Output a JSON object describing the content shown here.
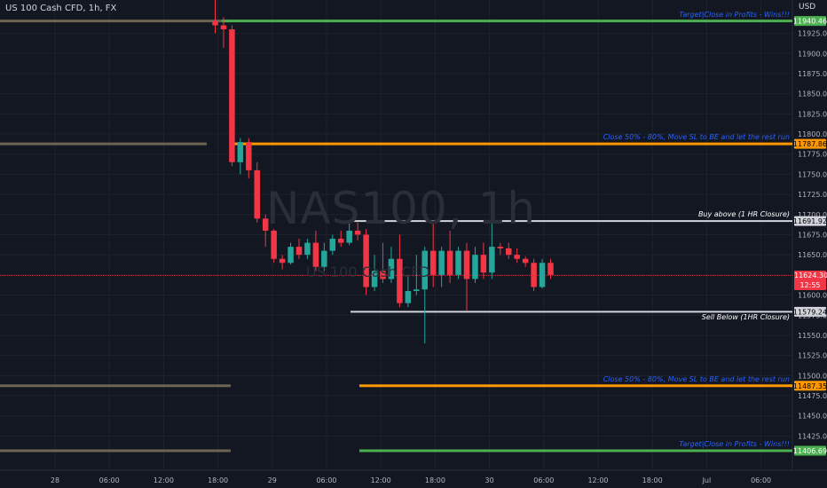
{
  "symbol_title": "US 100 Cash CFD, 1h, FX",
  "currency": "USD",
  "watermark": "NAS100, 1h",
  "watermark_sub": "US 100 Cash CFD",
  "colors": {
    "bg": "#131722",
    "up": "#26a69a",
    "down": "#f23645",
    "grid": "#1e222d",
    "axis_text": "#b2b5be"
  },
  "levels": [
    {
      "price": 11940.46,
      "label": "Target|Close in Profits - Wins!!!",
      "color": "#4caf50",
      "label_color": "#2962ff",
      "badge_text_color": "#ffffff"
    },
    {
      "price": 11787.86,
      "label": "Close 50% - 80%, Move SL to BE and let the rest run",
      "color": "#ff9800",
      "label_color": "#2962ff",
      "badge_text_color": "#000000"
    },
    {
      "price": 11691.92,
      "label": "Buy above (1 HR Closure)",
      "color": "#d1d4dc",
      "label_color": "#ffffff",
      "badge_text_color": "#000000"
    },
    {
      "price": 11579.24,
      "label": "Sell Below (1HR Closure)",
      "color": "#d1d4dc",
      "label_color": "#ffffff",
      "badge_text_color": "#000000"
    },
    {
      "price": 11487.35,
      "label": "Close 50% - 80%, Move SL to BE and let the rest run",
      "color": "#ff9800",
      "label_color": "#2962ff",
      "badge_text_color": "#000000"
    },
    {
      "price": 11406.69,
      "label": "Target|Close in Profits - Wins!!!",
      "color": "#4caf50",
      "label_color": "#2962ff",
      "badge_text_color": "#ffffff"
    }
  ],
  "current_price": {
    "price": 11624.3,
    "label": "11624.30",
    "countdown": "12:55"
  },
  "chart_data": {
    "type": "candlestick",
    "title": "US 100 Cash CFD, 1h, FX",
    "ylim": [
      11400,
      11960
    ],
    "y_ticks": [
      "11925.00",
      "11900.00",
      "11875.00",
      "11850.00",
      "11825.00",
      "11800.00",
      "11775.00",
      "11750.00",
      "11725.00",
      "11700.00",
      "11675.00",
      "11650.00",
      "11625.00",
      "11600.00",
      "11575.00",
      "11550.00",
      "11525.00",
      "11500.00",
      "11475.00",
      "11450.00",
      "11425.00"
    ],
    "x_ticks": [
      "28",
      "06:00",
      "12:00",
      "18:00",
      "29",
      "06:00",
      "12:00",
      "18:00",
      "30",
      "06:00",
      "12:00",
      "18:00",
      "Jul",
      "06:00"
    ],
    "candles": [
      {
        "o": 11940,
        "h": 12000,
        "l": 11925,
        "c": 11935
      },
      {
        "o": 11935,
        "h": 11945,
        "l": 11907,
        "c": 11930
      },
      {
        "o": 11930,
        "h": 11935,
        "l": 11760,
        "c": 11765
      },
      {
        "o": 11765,
        "h": 11795,
        "l": 11750,
        "c": 11790
      },
      {
        "o": 11790,
        "h": 11795,
        "l": 11745,
        "c": 11755
      },
      {
        "o": 11755,
        "h": 11765,
        "l": 11690,
        "c": 11695
      },
      {
        "o": 11695,
        "h": 11700,
        "l": 11660,
        "c": 11680
      },
      {
        "o": 11680,
        "h": 11682,
        "l": 11640,
        "c": 11645
      },
      {
        "o": 11645,
        "h": 11650,
        "l": 11632,
        "c": 11640
      },
      {
        "o": 11640,
        "h": 11665,
        "l": 11638,
        "c": 11660
      },
      {
        "o": 11660,
        "h": 11670,
        "l": 11645,
        "c": 11650
      },
      {
        "o": 11650,
        "h": 11670,
        "l": 11645,
        "c": 11665
      },
      {
        "o": 11665,
        "h": 11680,
        "l": 11630,
        "c": 11635
      },
      {
        "o": 11635,
        "h": 11665,
        "l": 11630,
        "c": 11655
      },
      {
        "o": 11655,
        "h": 11675,
        "l": 11650,
        "c": 11670
      },
      {
        "o": 11670,
        "h": 11680,
        "l": 11660,
        "c": 11665
      },
      {
        "o": 11665,
        "h": 11690,
        "l": 11662,
        "c": 11680
      },
      {
        "o": 11680,
        "h": 11690,
        "l": 11668,
        "c": 11675
      },
      {
        "o": 11675,
        "h": 11682,
        "l": 11600,
        "c": 11610
      },
      {
        "o": 11610,
        "h": 11650,
        "l": 11605,
        "c": 11630
      },
      {
        "o": 11630,
        "h": 11665,
        "l": 11615,
        "c": 11620
      },
      {
        "o": 11620,
        "h": 11660,
        "l": 11615,
        "c": 11645
      },
      {
        "o": 11645,
        "h": 11675,
        "l": 11585,
        "c": 11590
      },
      {
        "o": 11590,
        "h": 11625,
        "l": 11585,
        "c": 11605
      },
      {
        "o": 11605,
        "h": 11650,
        "l": 11600,
        "c": 11607
      },
      {
        "o": 11607,
        "h": 11660,
        "l": 11540,
        "c": 11655
      },
      {
        "o": 11655,
        "h": 11690,
        "l": 11610,
        "c": 11625
      },
      {
        "o": 11625,
        "h": 11660,
        "l": 11610,
        "c": 11655
      },
      {
        "o": 11655,
        "h": 11680,
        "l": 11615,
        "c": 11625
      },
      {
        "o": 11625,
        "h": 11660,
        "l": 11620,
        "c": 11655
      },
      {
        "o": 11655,
        "h": 11665,
        "l": 11580,
        "c": 11620
      },
      {
        "o": 11620,
        "h": 11660,
        "l": 11615,
        "c": 11650
      },
      {
        "o": 11650,
        "h": 11665,
        "l": 11620,
        "c": 11628
      },
      {
        "o": 11628,
        "h": 11690,
        "l": 11620,
        "c": 11660
      },
      {
        "o": 11660,
        "h": 11665,
        "l": 11650,
        "c": 11658
      },
      {
        "o": 11658,
        "h": 11665,
        "l": 11645,
        "c": 11650
      },
      {
        "o": 11650,
        "h": 11658,
        "l": 11640,
        "c": 11645
      },
      {
        "o": 11645,
        "h": 11648,
        "l": 11635,
        "c": 11640
      },
      {
        "o": 11640,
        "h": 11645,
        "l": 11605,
        "c": 11610
      },
      {
        "o": 11610,
        "h": 11645,
        "l": 11608,
        "c": 11640
      },
      {
        "o": 11640,
        "h": 11645,
        "l": 11620,
        "c": 11625
      }
    ]
  }
}
